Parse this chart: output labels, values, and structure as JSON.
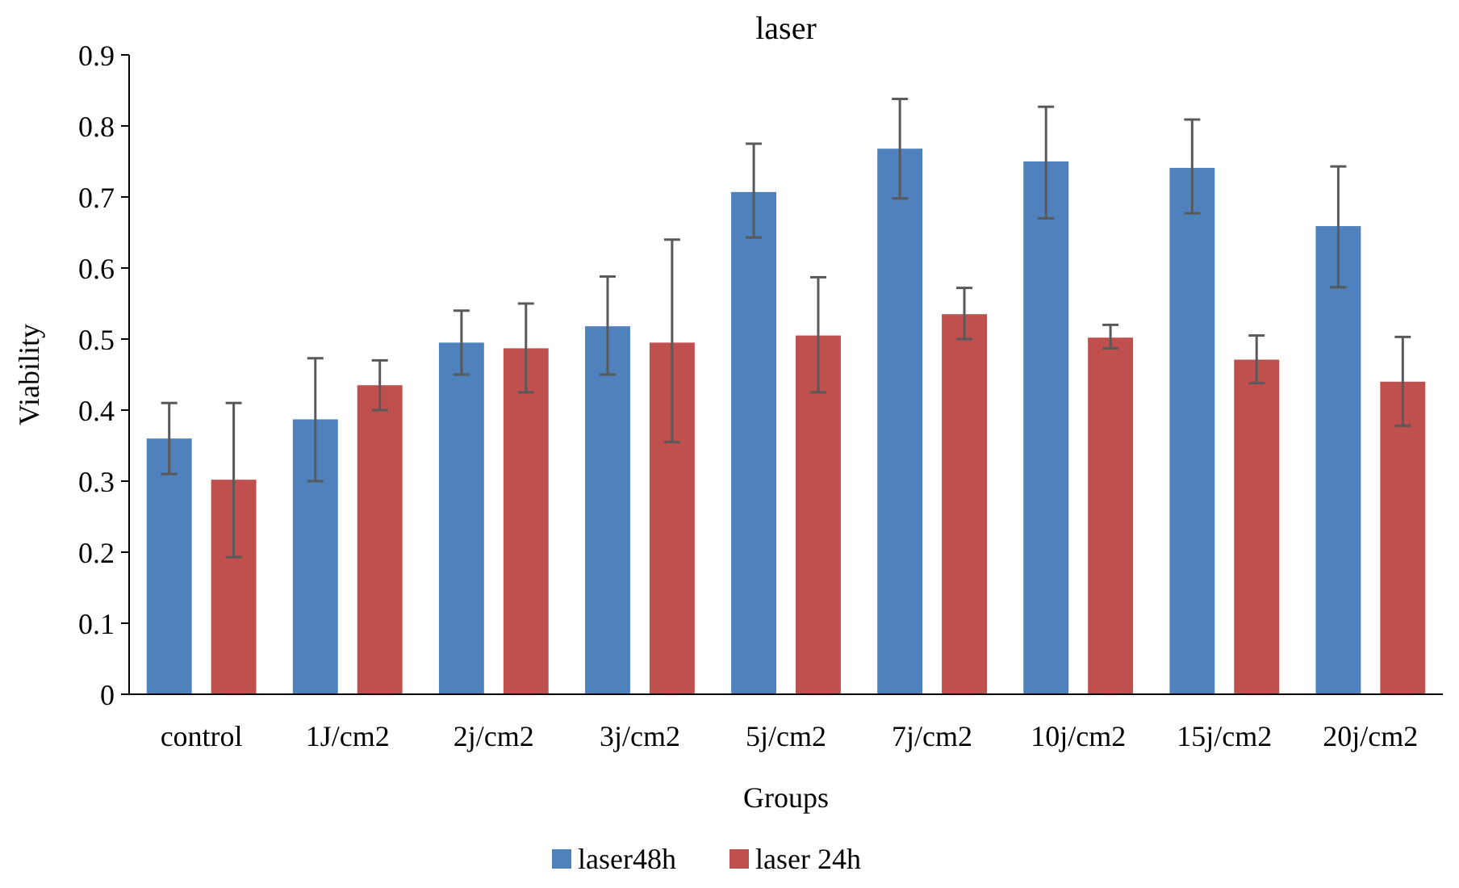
{
  "chart_data": {
    "type": "bar",
    "title": "laser",
    "xlabel": "Groups",
    "ylabel": "Viability",
    "categories": [
      "control",
      "1J/cm2",
      "2j/cm2",
      "3j/cm2",
      "5j/cm2",
      "7j/cm2",
      "10j/cm2",
      "15j/cm2",
      "20j/cm2"
    ],
    "series": [
      {
        "name": "laser48h",
        "color": "#4f81bd",
        "values": [
          0.36,
          0.387,
          0.495,
          0.518,
          0.707,
          0.768,
          0.75,
          0.741,
          0.659
        ],
        "errors": [
          [
            0.31,
            0.41
          ],
          [
            0.3,
            0.473
          ],
          [
            0.45,
            0.54
          ],
          [
            0.45,
            0.588
          ],
          [
            0.643,
            0.775
          ],
          [
            0.698,
            0.838
          ],
          [
            0.67,
            0.827
          ],
          [
            0.677,
            0.809
          ],
          [
            0.573,
            0.743
          ]
        ]
      },
      {
        "name": "laser 24h",
        "color": "#c0504d",
        "values": [
          0.302,
          0.435,
          0.487,
          0.495,
          0.505,
          0.535,
          0.502,
          0.471,
          0.44
        ],
        "errors": [
          [
            0.193,
            0.41
          ],
          [
            0.4,
            0.47
          ],
          [
            0.425,
            0.55
          ],
          [
            0.355,
            0.64
          ],
          [
            0.425,
            0.587
          ],
          [
            0.5,
            0.572
          ],
          [
            0.487,
            0.52
          ],
          [
            0.438,
            0.505
          ],
          [
            0.378,
            0.503
          ]
        ]
      }
    ],
    "ylim": [
      0,
      0.9
    ],
    "yticks": [
      0,
      0.1,
      0.2,
      0.3,
      0.4,
      0.5,
      0.6,
      0.7,
      0.8,
      0.9
    ],
    "legend": "bottom"
  }
}
